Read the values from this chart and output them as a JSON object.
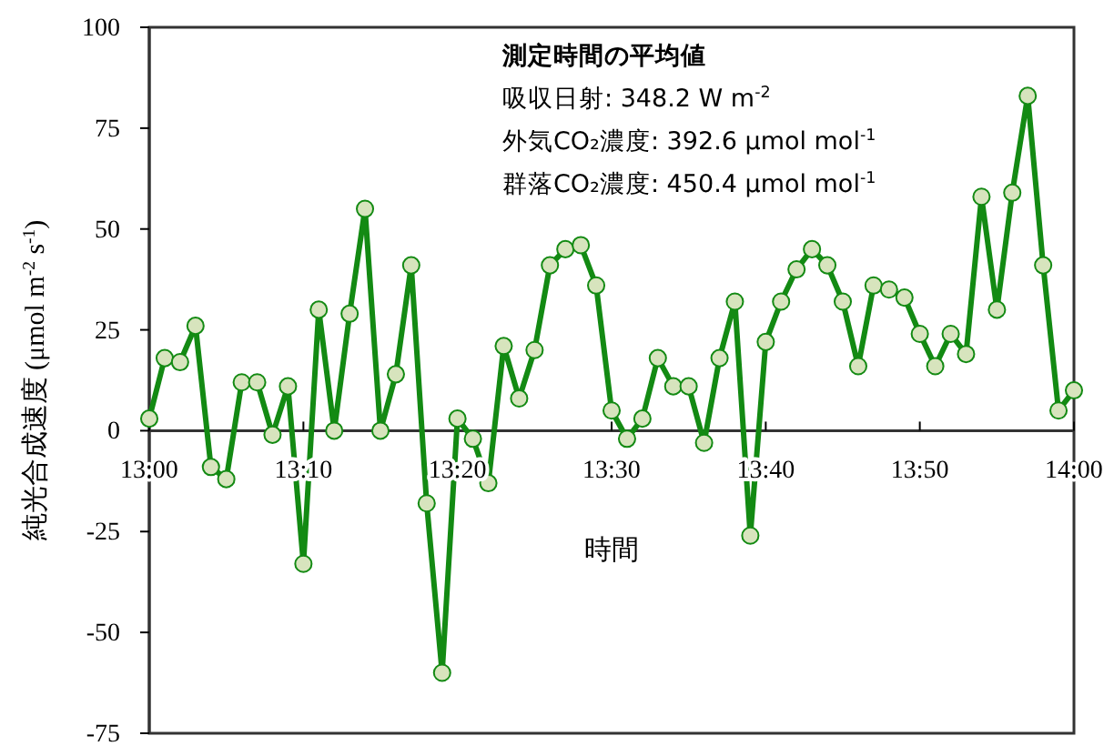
{
  "chart_data": {
    "type": "line",
    "xlabel": "時間",
    "ylabel": "純光合成速度 (μmol m$^{-2}$ s$^{-1}$)",
    "annotations": [
      "測定時間の平均値",
      "吸収日射: 348.2 W m$^{-2}$",
      "外気CO₂濃度: 392.6 μmol mol$^{-1}$",
      "群落CO₂濃度: 450.4 μmol mol$^{-1}$"
    ],
    "x": [
      13,
      13.0167,
      13.0333,
      13.05,
      13.0667,
      13.0833,
      13.1,
      13.1167,
      13.1333,
      13.15,
      13.1667,
      13.1833,
      13.2,
      13.2167,
      13.2333,
      13.25,
      13.2667,
      13.2833,
      13.3,
      13.3167,
      13.3333,
      13.35,
      13.3667,
      13.3833,
      13.4,
      13.4167,
      13.4333,
      13.45,
      13.4667,
      13.4833,
      13.5,
      13.5167,
      13.5333,
      13.55,
      13.5667,
      13.5833,
      13.6,
      13.6167,
      13.6333,
      13.65,
      13.6667,
      13.6833,
      13.7,
      13.7167,
      13.7333,
      13.75,
      13.7667,
      13.7833,
      13.8,
      13.8167,
      13.8333,
      13.85,
      13.8667,
      13.8833,
      13.9,
      13.9167,
      13.9333,
      13.95,
      13.9667,
      13.9833,
      14
    ],
    "series": [
      {
        "color": "#138a13",
        "values": [
          3,
          18,
          17,
          26,
          -9,
          -12,
          12,
          12,
          -1,
          11,
          -33,
          30,
          0,
          29,
          55,
          0,
          14,
          41,
          -18,
          -60,
          3,
          -2,
          -13,
          21,
          8,
          20,
          41,
          45,
          46,
          36,
          5,
          -2,
          3,
          18,
          11,
          11,
          -3,
          18,
          32,
          -26,
          22,
          32,
          40,
          45,
          41,
          32,
          16,
          36,
          35,
          33,
          24,
          16,
          24,
          19,
          58,
          30,
          59,
          83,
          41,
          5,
          10
        ]
      }
    ],
    "xlim": [
      13,
      14
    ],
    "xticks": [
      {
        "value": 13,
        "label": "13:00"
      },
      {
        "value": 13.1667,
        "label": "13:10"
      },
      {
        "value": 13.3333,
        "label": "13:20"
      },
      {
        "value": 13.5,
        "label": "13:30"
      },
      {
        "value": 13.6667,
        "label": "13:40"
      },
      {
        "value": 13.8333,
        "label": "13:50"
      },
      {
        "value": 14,
        "label": "14:00"
      }
    ],
    "ylim": [
      -75,
      100
    ],
    "yticks": [
      -75,
      -50,
      -25,
      0,
      25,
      50,
      75,
      100
    ],
    "grid": false,
    "marker": "circle",
    "line_style": "solid"
  }
}
